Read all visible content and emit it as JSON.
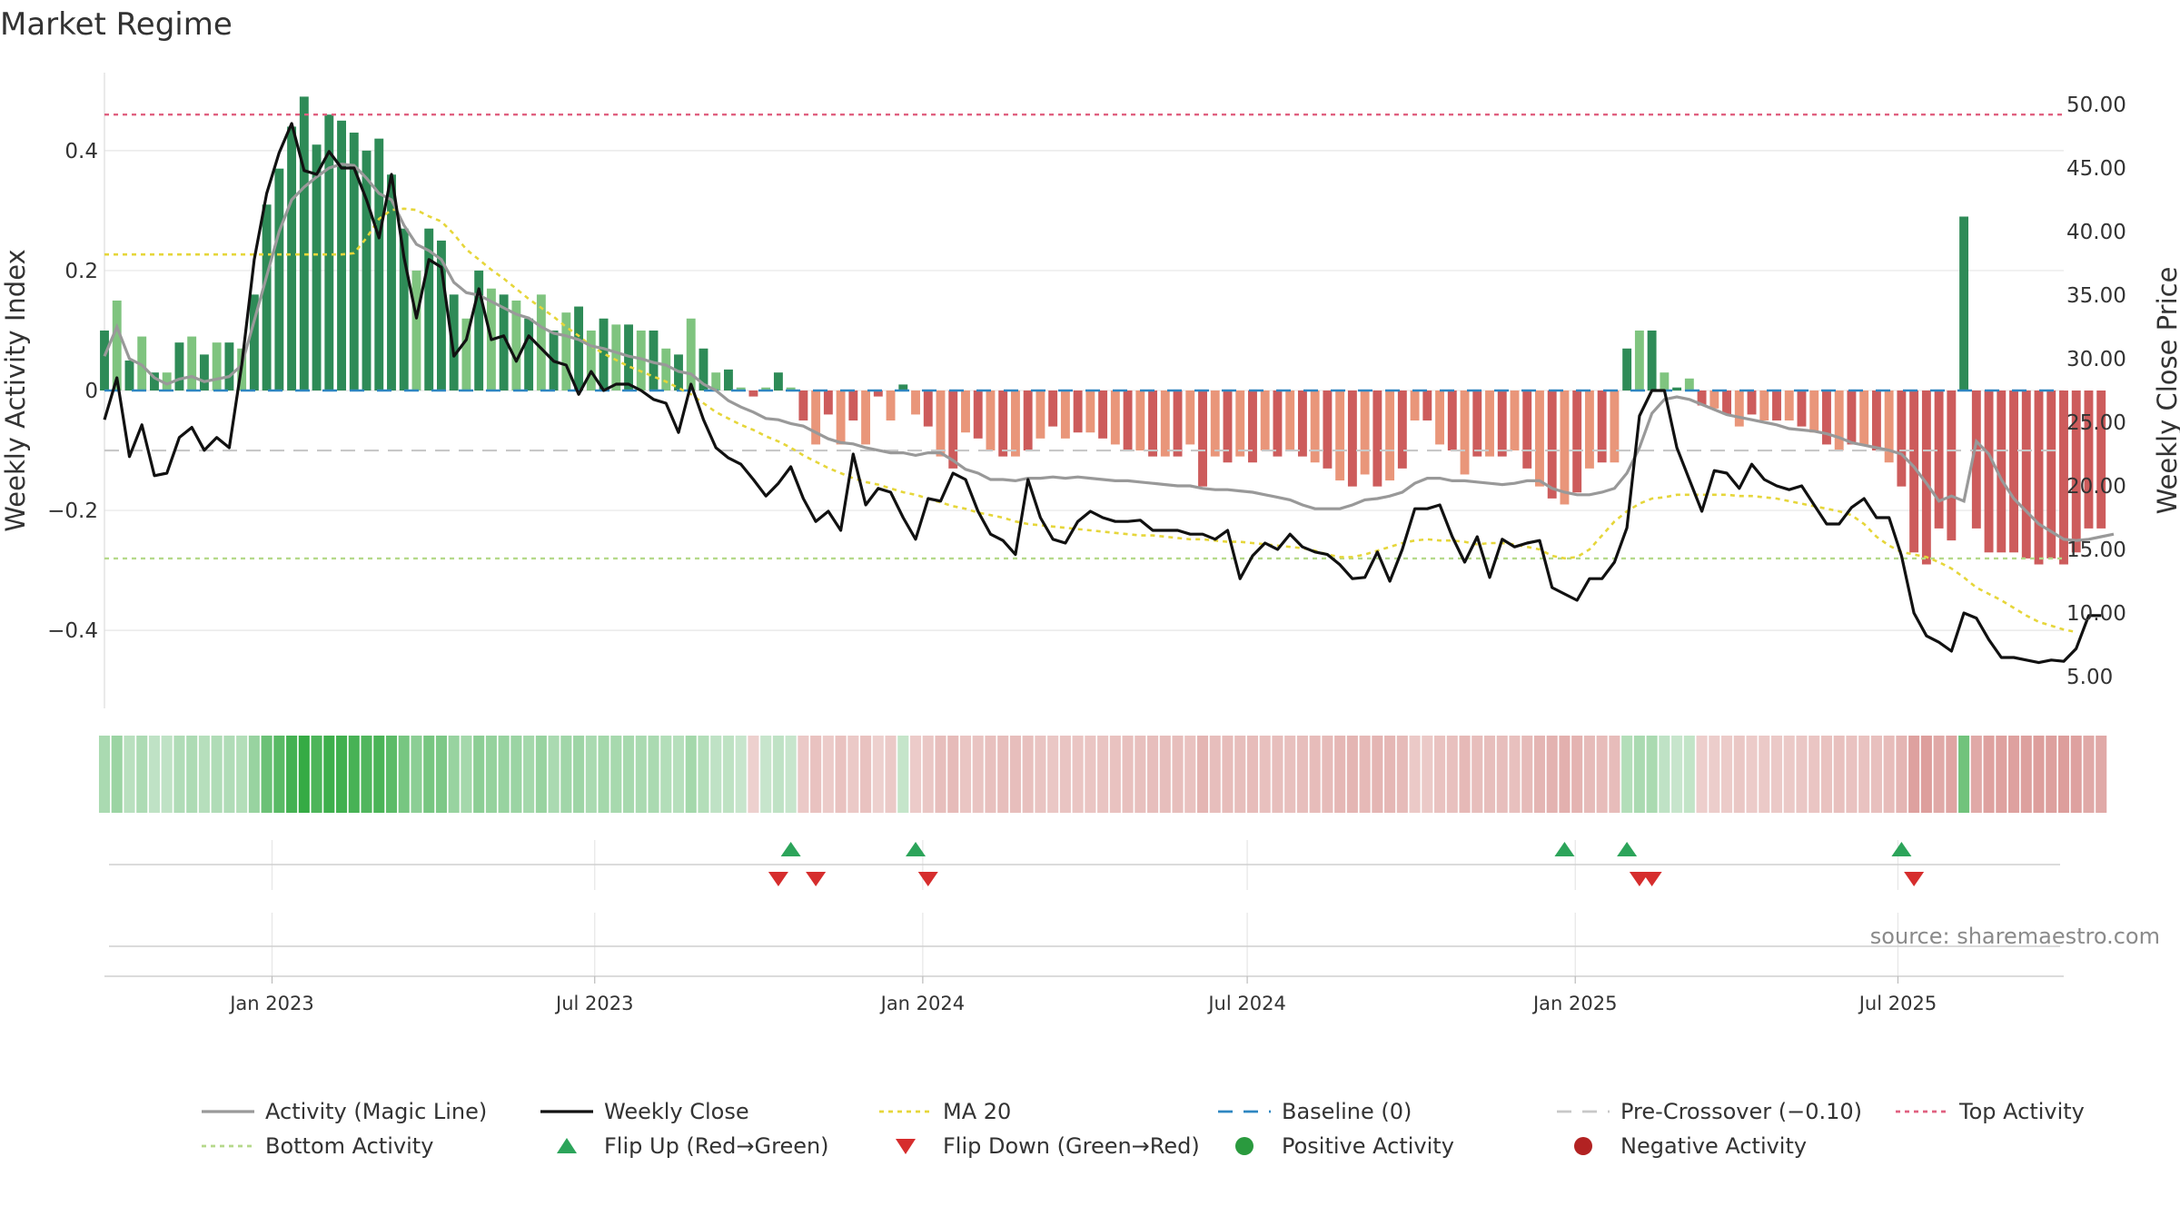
{
  "chart_data": {
    "type": "bar",
    "title": "Market Regime",
    "ylabel_left": "Weekly Activity Index",
    "ylabel_right": "Weekly Close Price",
    "source": "source: sharemaestro.com",
    "left_axis": {
      "ylim": [
        -0.53,
        0.53
      ],
      "ticks": [
        0.4,
        0.2,
        0,
        -0.2,
        -0.4
      ],
      "tick_labels": [
        "0.4",
        "0.2",
        "0",
        "−0.2",
        "−0.4"
      ]
    },
    "right_axis": {
      "ylim": [
        2.5,
        52.5
      ],
      "ticks": [
        50,
        45,
        40,
        35,
        30,
        25,
        20,
        15,
        10,
        5
      ],
      "tick_labels": [
        "50.00",
        "45.00",
        "40.00",
        "35.00",
        "30.00",
        "25.00",
        "20.00",
        "15.00",
        "10.00",
        "5.00"
      ]
    },
    "x_axis": {
      "start": "2022-09-29",
      "end": "2025-10-02",
      "ticks": [
        "2023-01-01",
        "2023-07-01",
        "2024-01-01",
        "2024-07-01",
        "2025-01-01",
        "2025-07-01"
      ],
      "tick_labels": [
        "Jan 2023",
        "Jul 2023",
        "Jan 2024",
        "Jul 2024",
        "Jan 2025",
        "Jul 2025"
      ]
    },
    "grid": true,
    "reference_lines": {
      "baseline": 0,
      "pre_crossover": -0.1,
      "top_activity": 0.46,
      "bottom_activity": -0.28
    },
    "weeks_first": "2022-09-29",
    "activity": [
      0.1,
      0.15,
      0.05,
      0.09,
      0.03,
      0.03,
      0.08,
      0.09,
      0.06,
      0.08,
      0.08,
      0.07,
      0.16,
      0.31,
      0.37,
      0.44,
      0.49,
      0.41,
      0.46,
      0.45,
      0.43,
      0.4,
      0.42,
      0.36,
      0.27,
      0.2,
      0.27,
      0.25,
      0.16,
      0.12,
      0.2,
      0.17,
      0.16,
      0.15,
      0.12,
      0.16,
      0.1,
      0.13,
      0.14,
      0.1,
      0.12,
      0.11,
      0.11,
      0.1,
      0.1,
      0.07,
      0.06,
      0.12,
      0.07,
      0.03,
      0.035,
      0.005,
      -0.01,
      0.005,
      0.03,
      0.005,
      -0.05,
      -0.09,
      -0.04,
      -0.09,
      -0.05,
      -0.09,
      -0.01,
      -0.05,
      0.01,
      -0.04,
      -0.06,
      -0.11,
      -0.13,
      -0.07,
      -0.08,
      -0.1,
      -0.11,
      -0.11,
      -0.1,
      -0.08,
      -0.06,
      -0.08,
      -0.07,
      -0.07,
      -0.08,
      -0.09,
      -0.1,
      -0.1,
      -0.11,
      -0.11,
      -0.11,
      -0.09,
      -0.16,
      -0.11,
      -0.12,
      -0.11,
      -0.12,
      -0.1,
      -0.11,
      -0.1,
      -0.11,
      -0.12,
      -0.13,
      -0.15,
      -0.16,
      -0.14,
      -0.16,
      -0.15,
      -0.13,
      -0.05,
      -0.05,
      -0.09,
      -0.1,
      -0.14,
      -0.11,
      -0.11,
      -0.11,
      -0.1,
      -0.13,
      -0.16,
      -0.18,
      -0.19,
      -0.17,
      -0.13,
      -0.12,
      -0.12,
      0.07,
      0.1,
      0.1,
      0.03,
      0.005,
      0.02,
      -0.025,
      -0.03,
      -0.04,
      -0.06,
      -0.04,
      -0.05,
      -0.05,
      -0.05,
      -0.06,
      -0.07,
      -0.09,
      -0.1,
      -0.09,
      -0.09,
      -0.1,
      -0.12,
      -0.16,
      -0.27,
      -0.29,
      -0.23,
      -0.25,
      0.29,
      -0.23,
      -0.27,
      -0.27,
      -0.27,
      -0.28,
      -0.29,
      -0.28,
      -0.29,
      -0.27,
      -0.23,
      -0.23
    ],
    "close": [
      25.2,
      28.5,
      22.3,
      24.8,
      20.8,
      21.0,
      23.8,
      24.6,
      22.8,
      23.8,
      23.0,
      29.5,
      37.8,
      43.0,
      46.2,
      48.5,
      44.8,
      44.5,
      46.3,
      45.0,
      45.0,
      42.5,
      39.5,
      44.5,
      38.0,
      33.2,
      37.8,
      37.2,
      30.2,
      31.5,
      35.5,
      31.5,
      31.8,
      29.8,
      31.8,
      30.8,
      29.8,
      29.5,
      27.2,
      29.0,
      27.5,
      28.0,
      28.0,
      27.5,
      26.8,
      26.5,
      24.2,
      28.0,
      25.2,
      23.0,
      22.2,
      21.7,
      20.5,
      19.2,
      20.2,
      21.5,
      19.0,
      17.2,
      18.0,
      16.5,
      22.5,
      18.5,
      19.8,
      19.5,
      17.5,
      15.8,
      19.0,
      18.8,
      21.0,
      20.5,
      18.0,
      16.2,
      15.7,
      14.6,
      20.5,
      17.5,
      15.8,
      15.5,
      17.2,
      18.0,
      17.5,
      17.2,
      17.2,
      17.3,
      16.5,
      16.5,
      16.5,
      16.2,
      16.2,
      15.8,
      16.5,
      12.7,
      14.5,
      15.5,
      15.0,
      16.2,
      15.2,
      14.8,
      14.6,
      13.8,
      12.7,
      12.8,
      14.8,
      12.5,
      15.0,
      18.2,
      18.2,
      18.5,
      16.0,
      14.0,
      16.0,
      12.8,
      15.8,
      15.2,
      15.5,
      15.7,
      12.0,
      11.5,
      11.0,
      12.7,
      12.7,
      14.0,
      16.7,
      25.5,
      27.5,
      27.5,
      23.0,
      20.5,
      18.0,
      21.2,
      21.0,
      19.8,
      21.7,
      20.5,
      20.0,
      19.7,
      20.0,
      18.5,
      17.0,
      17.0,
      18.3,
      19.0,
      17.5,
      17.5,
      14.5,
      10.0,
      8.2,
      7.7,
      7.0,
      10.0,
      9.6,
      7.9,
      6.5,
      6.5,
      6.3,
      6.1,
      6.3,
      6.2,
      7.2,
      9.8,
      9.8
    ],
    "magic_line": [
      30.2,
      32.5,
      30.0,
      29.5,
      28.5,
      28.0,
      28.4,
      28.6,
      28.2,
      28.4,
      28.6,
      29.5,
      33.0,
      36.5,
      40.0,
      42.5,
      43.5,
      44.3,
      45.0,
      45.3,
      45.2,
      44.2,
      43.0,
      42.5,
      40.5,
      39.0,
      38.5,
      37.8,
      36.0,
      35.2,
      35.0,
      34.5,
      34.0,
      33.5,
      33.2,
      32.5,
      32.0,
      31.8,
      31.5,
      31.0,
      30.8,
      30.5,
      30.2,
      30.0,
      29.7,
      29.5,
      29.0,
      28.8,
      28.0,
      27.5,
      26.7,
      26.2,
      25.8,
      25.3,
      25.2,
      24.9,
      24.7,
      24.2,
      23.7,
      23.4,
      23.3,
      23.0,
      22.8,
      22.6,
      22.6,
      22.4,
      22.6,
      22.6,
      22.0,
      21.3,
      21.0,
      20.5,
      20.5,
      20.4,
      20.6,
      20.6,
      20.7,
      20.6,
      20.7,
      20.6,
      20.5,
      20.4,
      20.4,
      20.3,
      20.2,
      20.1,
      20.0,
      20.0,
      19.8,
      19.7,
      19.7,
      19.6,
      19.5,
      19.3,
      19.1,
      18.9,
      18.5,
      18.2,
      18.2,
      18.2,
      18.5,
      18.9,
      19.0,
      19.2,
      19.5,
      20.2,
      20.6,
      20.6,
      20.4,
      20.4,
      20.3,
      20.2,
      20.1,
      20.2,
      20.4,
      20.4,
      19.8,
      19.5,
      19.3,
      19.3,
      19.5,
      19.8,
      21.0,
      23.0,
      25.7,
      26.8,
      27.0,
      26.8,
      26.4,
      26.0,
      25.6,
      25.4,
      25.2,
      25.0,
      24.8,
      24.5,
      24.4,
      24.3,
      24.1,
      23.8,
      23.4,
      23.2,
      23.0,
      22.8,
      22.5,
      21.5,
      20.2,
      18.8,
      19.2,
      18.8,
      23.5,
      22.5,
      20.5,
      19.0,
      18.0,
      17.0,
      16.4,
      15.8,
      15.7,
      15.8,
      16.0,
      16.2
    ],
    "ma20": [
      38.2,
      38.2,
      38.2,
      38.2,
      38.2,
      38.2,
      38.2,
      38.2,
      38.2,
      38.2,
      38.2,
      38.2,
      38.2,
      38.2,
      38.2,
      38.2,
      38.2,
      38.2,
      38.2,
      38.2,
      38.3,
      39.5,
      41.0,
      41.7,
      41.8,
      41.7,
      41.2,
      40.8,
      39.8,
      38.6,
      37.8,
      37.0,
      36.3,
      35.5,
      34.7,
      34.0,
      33.3,
      32.5,
      31.8,
      31.0,
      30.4,
      29.9,
      29.4,
      29.0,
      28.6,
      28.2,
      27.7,
      27.2,
      26.5,
      25.8,
      25.3,
      24.8,
      24.4,
      23.9,
      23.5,
      23.0,
      22.4,
      21.9,
      21.4,
      21.0,
      20.6,
      20.3,
      20.1,
      19.8,
      19.5,
      19.3,
      19.0,
      18.7,
      18.4,
      18.2,
      17.9,
      17.7,
      17.5,
      17.2,
      17.0,
      16.9,
      16.8,
      16.7,
      16.6,
      16.5,
      16.4,
      16.3,
      16.2,
      16.1,
      16.1,
      16.0,
      15.9,
      15.8,
      15.8,
      15.7,
      15.6,
      15.6,
      15.5,
      15.4,
      15.3,
      15.2,
      15.1,
      14.9,
      14.6,
      14.4,
      14.4,
      14.6,
      14.9,
      15.2,
      15.5,
      15.7,
      15.8,
      15.7,
      15.7,
      15.6,
      15.4,
      15.5,
      15.5,
      15.4,
      15.2,
      15.0,
      14.5,
      14.3,
      14.4,
      15.0,
      16.1,
      17.2,
      18.0,
      18.6,
      19.0,
      19.1,
      19.3,
      19.3,
      19.3,
      19.3,
      19.3,
      19.2,
      19.2,
      19.1,
      19.0,
      18.8,
      18.6,
      18.4,
      18.2,
      18.0,
      17.7,
      17.0,
      16.0,
      15.3,
      14.8,
      14.6,
      14.4,
      14.0,
      13.5,
      12.8,
      12.0,
      11.5,
      11.0,
      10.4,
      9.8,
      9.3,
      9.0,
      8.7,
      8.5
    ],
    "flip_up_weeks": [
      "2023-10-19",
      "2023-12-28",
      "2024-12-26",
      "2025-01-30",
      "2025-07-03"
    ],
    "flip_down_weeks": [
      "2023-10-12",
      "2023-11-02",
      "2024-01-04",
      "2025-02-06",
      "2025-02-13",
      "2025-07-10"
    ]
  },
  "legend": [
    {
      "label": "Activity (Magic Line)",
      "symbol": "solid-line",
      "color": "#999999"
    },
    {
      "label": "Weekly Close",
      "symbol": "solid-line",
      "color": "#111111"
    },
    {
      "label": "MA 20",
      "symbol": "dotted-line",
      "color": "#e6d63a"
    },
    {
      "label": "Baseline (0)",
      "symbol": "dashed-line",
      "color": "#2e86c1"
    },
    {
      "label": "Pre-Crossover (−0.10)",
      "symbol": "dashed-line",
      "color": "#c8c8c8"
    },
    {
      "label": "Top Activity",
      "symbol": "dotted-line",
      "color": "#e06080"
    },
    {
      "label": "Bottom Activity",
      "symbol": "dotted-line",
      "color": "#b5d98a"
    },
    {
      "label": "Flip Up (Red→Green)",
      "symbol": "triangle-up",
      "color": "#2ca45a"
    },
    {
      "label": "Flip Down (Green→Red)",
      "symbol": "triangle-down",
      "color": "#d62d2d"
    },
    {
      "label": "Positive Activity",
      "symbol": "circle",
      "color": "#2a9a3e"
    },
    {
      "label": "Negative Activity",
      "symbol": "circle",
      "color": "#b22222"
    }
  ],
  "colors": {
    "positive_dark": "#2e8b57",
    "positive_light": "#7fc47f",
    "negative_dark": "#cd5c5c",
    "negative_light": "#e9967a",
    "grid": "#e6e6e6"
  }
}
